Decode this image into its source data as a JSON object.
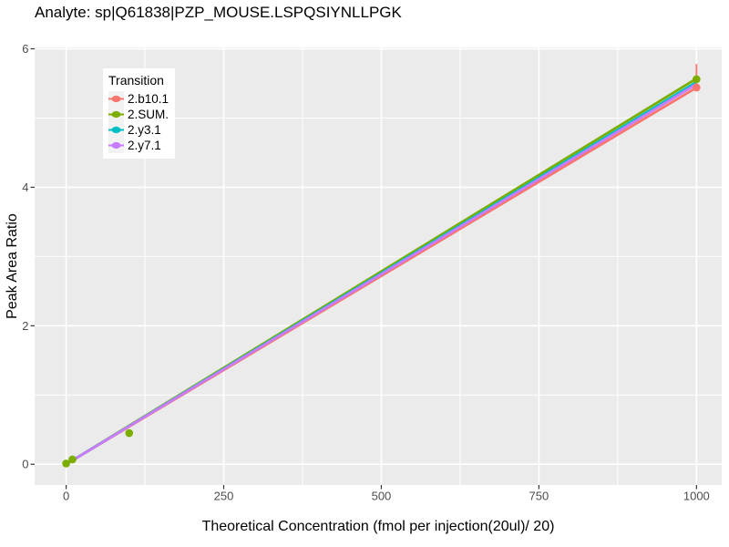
{
  "chart_data": {
    "type": "line",
    "title": "Analyte: sp|Q61838|PZP_MOUSE.LSPQSIYNLLPGK",
    "xlabel": "Theoretical Concentration (fmol per injection(20ul)/ 20)",
    "ylabel": "Peak Area Ratio",
    "xlim": [
      -50,
      1040
    ],
    "ylim": [
      -0.3,
      6.02
    ],
    "xticks": [
      0,
      250,
      500,
      750,
      1000
    ],
    "yticks": [
      0,
      2,
      4,
      6
    ],
    "grid": "white major and minor gridlines on gray panel",
    "panel_bg": "#EBEBEB",
    "grid_color": "#FFFFFF",
    "tick_label_color": "#4D4D4D",
    "legend_title": "Transition",
    "legend_position": "inside-top-left",
    "series": [
      {
        "name": "2.b10.1",
        "color": "#F8766D",
        "line": {
          "x": [
            0,
            1000
          ],
          "y": [
            0,
            5.44
          ]
        },
        "points": [
          [
            1000,
            5.44
          ]
        ],
        "error_bar": {
          "x": 1000,
          "from": 5.44,
          "to": 5.78
        }
      },
      {
        "name": "2.SUM.",
        "color": "#7CAE00",
        "line": {
          "x": [
            0,
            1000
          ],
          "y": [
            0,
            5.57
          ]
        },
        "points": [
          [
            0,
            0.01
          ],
          [
            10,
            0.07
          ],
          [
            100,
            0.45
          ],
          [
            1000,
            5.56
          ]
        ]
      },
      {
        "name": "2.y3.1",
        "color": "#00BFC4",
        "line": {
          "x": [
            0,
            1000
          ],
          "y": [
            0,
            5.52
          ]
        },
        "points": []
      },
      {
        "name": "2.y7.1",
        "color": "#C77CFF",
        "line": {
          "x": [
            0,
            1000
          ],
          "y": [
            0,
            5.49
          ]
        },
        "points": []
      }
    ]
  }
}
